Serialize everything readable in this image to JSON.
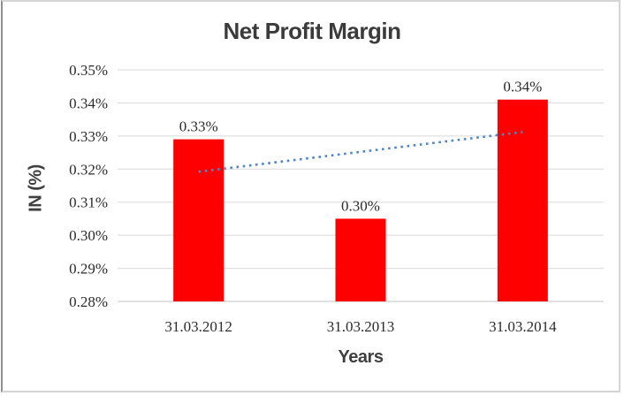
{
  "chart_data": {
    "type": "bar",
    "title": "Net Profit Margin",
    "xlabel": "Years",
    "ylabel": "IN (%)",
    "categories": [
      "31.03.2012",
      "31.03.2013",
      "31.03.2014"
    ],
    "values": [
      0.329,
      0.305,
      0.341
    ],
    "data_labels": [
      "0.33%",
      "0.30%",
      "0.34%"
    ],
    "ylim": [
      0.28,
      0.35
    ],
    "yticks": [
      {
        "value": 0.28,
        "label": "0.28%"
      },
      {
        "value": 0.29,
        "label": "0.29%"
      },
      {
        "value": 0.3,
        "label": "0.30%"
      },
      {
        "value": 0.31,
        "label": "0.31%"
      },
      {
        "value": 0.32,
        "label": "0.32%"
      },
      {
        "value": 0.33,
        "label": "0.33%"
      },
      {
        "value": 0.34,
        "label": "0.34%"
      },
      {
        "value": 0.35,
        "label": "0.35%"
      },
      {
        "value": 0.35,
        "label": ""
      }
    ],
    "grid": true,
    "legend": false,
    "trendline": {
      "type": "linear",
      "style": "dotted",
      "start_value": 0.3192,
      "end_value": 0.3312
    },
    "colors": {
      "bar": "#ff0000",
      "trendline": "#4e86c6",
      "gridline": "#d9d9d9",
      "axis_line": "#c3c3c3",
      "title_text": "#3b3b3b",
      "label_text": "#2b2b2b"
    }
  }
}
